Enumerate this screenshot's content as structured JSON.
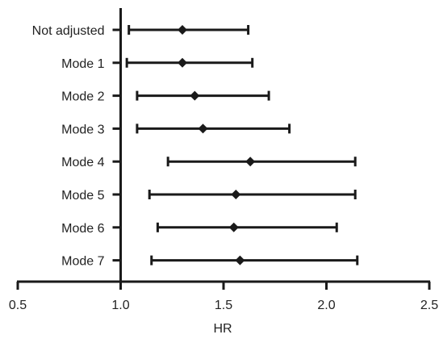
{
  "chart_data": {
    "type": "forest",
    "xlabel": "HR",
    "xlim": [
      0.5,
      2.5
    ],
    "x_ticks": [
      0.5,
      1.0,
      1.5,
      2.0,
      2.5
    ],
    "x_tick_labels": [
      "0.5",
      "1.0",
      "1.5",
      "2.0",
      "2.5"
    ],
    "reference_line": 1.0,
    "categories": [
      "Not adjusted",
      "Mode 1",
      "Mode 2",
      "Mode 3",
      "Mode 4",
      "Mode 5",
      "Mode 6",
      "Mode 7"
    ],
    "estimates": [
      1.3,
      1.3,
      1.36,
      1.4,
      1.63,
      1.56,
      1.55,
      1.58
    ],
    "lower": [
      1.04,
      1.03,
      1.08,
      1.08,
      1.23,
      1.14,
      1.18,
      1.15
    ],
    "upper": [
      1.62,
      1.64,
      1.72,
      1.82,
      2.14,
      2.14,
      2.05,
      2.15
    ],
    "marker": "diamond",
    "color": "#1a1a1a"
  }
}
